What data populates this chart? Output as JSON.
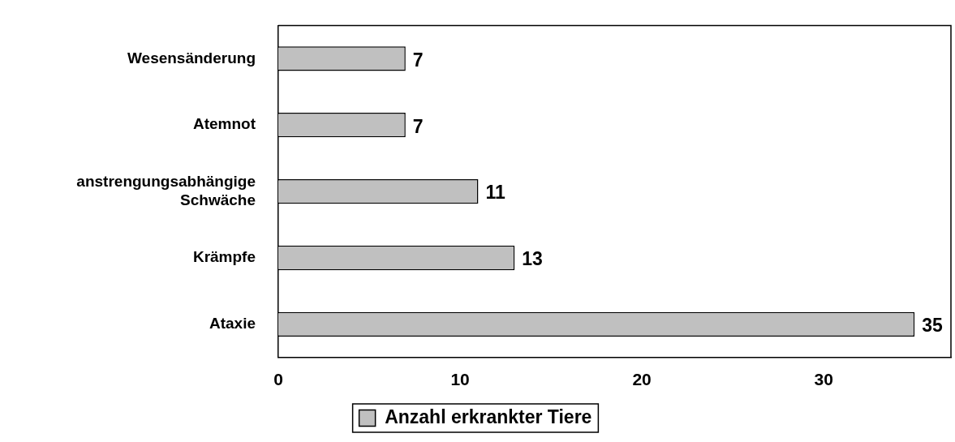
{
  "chart_data": {
    "type": "bar",
    "orientation": "horizontal",
    "categories": [
      "Wesensänderung",
      "Atemnot",
      "anstrengungsabhängige Schwäche",
      "Krämpfe",
      "Ataxie"
    ],
    "series": [
      {
        "name": "Anzahl erkrankter Tiere",
        "color": "#c0c0c0",
        "values": [
          7,
          7,
          11,
          13,
          35
        ]
      }
    ],
    "xlim": [
      0,
      37
    ],
    "xticks": [
      0,
      10,
      20,
      30
    ],
    "grid": false,
    "legend": "bottom",
    "data_labels": true
  }
}
